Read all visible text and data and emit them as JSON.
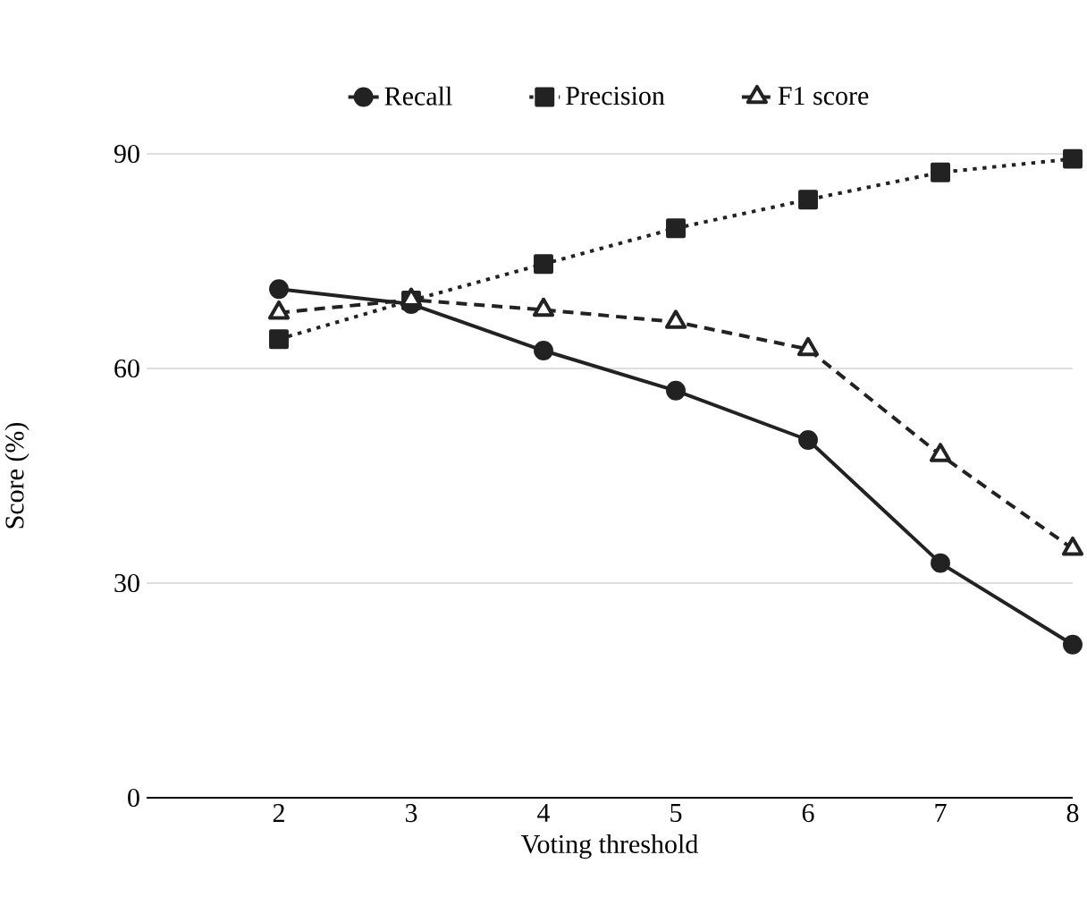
{
  "chart_data": {
    "type": "line",
    "xlabel": "Voting threshold",
    "ylabel": "Score (%)",
    "x": [
      2,
      3,
      4,
      5,
      6,
      7,
      8
    ],
    "xlim": [
      1,
      8
    ],
    "xticks": [
      2,
      3,
      4,
      5,
      6,
      7,
      8
    ],
    "ylim": [
      0,
      90
    ],
    "yticks": [
      0,
      30,
      60,
      90
    ],
    "grid": "y",
    "legend": "top",
    "series": [
      {
        "name": "Recall",
        "color": "#222222",
        "marker": "circle",
        "line_style": "solid",
        "values": [
          71.1,
          69.0,
          62.5,
          56.9,
          50.0,
          32.8,
          21.4
        ]
      },
      {
        "name": "Precision",
        "color": "#222222",
        "marker": "square",
        "line_style": "dotted",
        "values": [
          64.1,
          69.5,
          74.6,
          79.6,
          83.6,
          87.4,
          89.3
        ]
      },
      {
        "name": "F1 score",
        "color": "#222222",
        "marker": "triangle",
        "line_style": "dashed",
        "values": [
          67.8,
          69.6,
          68.2,
          66.5,
          62.7,
          47.9,
          34.8
        ]
      }
    ]
  }
}
